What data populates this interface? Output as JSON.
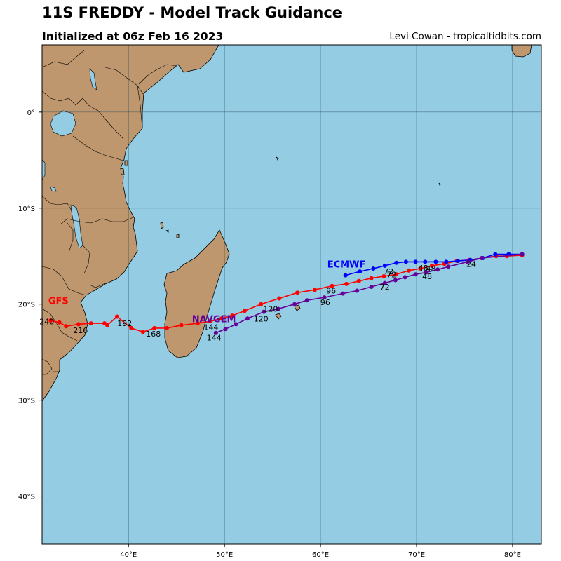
{
  "header": {
    "title": "11S FREDDY - Model Track Guidance",
    "subtitle": "Initialized at 06z Feb 16 2023",
    "credit": "Levi Cowan - tropicaltidbits.com"
  },
  "colors": {
    "ocean": "#94cde3",
    "land": "#bf976e",
    "lake": "#94cde3",
    "grid": "#2b4f5c",
    "GFS": "#ff0000",
    "ECMWF": "#0000ff",
    "NAVGEM": "#660099"
  },
  "chart_data": {
    "type": "scatter",
    "title": "11S FREDDY - Model Track Guidance",
    "subtitle": "Initialized at 06z Feb 16 2023",
    "x_axis": {
      "unit": "degrees longitude east",
      "range": [
        31,
        83
      ],
      "ticks": [
        40,
        50,
        60,
        70,
        80
      ],
      "tick_labels": [
        "40°E",
        "50°E",
        "60°E",
        "70°E",
        "80°E"
      ]
    },
    "y_axis": {
      "unit": "degrees latitude (negative = south)",
      "range": [
        -45,
        7
      ],
      "ticks": [
        0,
        -10,
        -20,
        -30,
        -40
      ],
      "tick_labels": [
        "0°",
        "10°S",
        "20°S",
        "30°S",
        "40°S"
      ]
    },
    "grid": true,
    "series": [
      {
        "name": "GFS",
        "color": "#ff0000",
        "points": [
          [
            81.0,
            -14.9
          ],
          [
            79.4,
            -15.0
          ],
          [
            78.3,
            -15.0
          ],
          [
            76.8,
            -15.2
          ],
          [
            75.5,
            -15.4
          ],
          [
            74.2,
            -15.5
          ],
          [
            72.9,
            -15.8
          ],
          [
            71.6,
            -16.0
          ],
          [
            70.4,
            -16.3
          ],
          [
            69.2,
            -16.5
          ],
          [
            67.9,
            -16.9
          ],
          [
            66.6,
            -17.1
          ],
          [
            65.3,
            -17.3
          ],
          [
            64.0,
            -17.6
          ],
          [
            62.7,
            -17.9
          ],
          [
            61.2,
            -18.1
          ],
          [
            59.4,
            -18.5
          ],
          [
            57.6,
            -18.8
          ],
          [
            55.7,
            -19.4
          ],
          [
            53.8,
            -20.0
          ],
          [
            52.1,
            -20.7
          ],
          [
            50.8,
            -21.2
          ],
          [
            49.7,
            -21.5
          ],
          [
            48.5,
            -21.8
          ],
          [
            47.2,
            -22.0
          ],
          [
            45.5,
            -22.2
          ],
          [
            44.0,
            -22.5
          ],
          [
            42.7,
            -22.5
          ],
          [
            41.5,
            -22.9
          ],
          [
            40.3,
            -22.5
          ],
          [
            38.8,
            -21.3
          ],
          [
            37.8,
            -22.2
          ],
          [
            37.5,
            -22.0
          ],
          [
            36.1,
            -22.0
          ],
          [
            34.8,
            -22.1
          ],
          [
            33.5,
            -22.3
          ],
          [
            32.8,
            -21.9
          ],
          [
            31.9,
            -21.7
          ]
        ],
        "hour_labels": [
          {
            "text": "24",
            "lon": 75.7,
            "lat": -16.1
          },
          {
            "text": "48",
            "lon": 71.5,
            "lat": -16.6
          },
          {
            "text": "72",
            "lon": 67.4,
            "lat": -17.2
          },
          {
            "text": "96",
            "lon": 61.1,
            "lat": -18.9
          },
          {
            "text": "120",
            "lon": 54.8,
            "lat": -20.8
          },
          {
            "text": "144",
            "lon": 48.6,
            "lat": -22.7
          },
          {
            "text": "168",
            "lon": 42.6,
            "lat": -23.4
          },
          {
            "text": "192",
            "lon": 39.6,
            "lat": -22.3
          },
          {
            "text": "216",
            "lon": 35.0,
            "lat": -23.0
          },
          {
            "text": "240",
            "lon": 31.5,
            "lat": -22.1
          }
        ]
      },
      {
        "name": "ECMWF",
        "color": "#0000ff",
        "points": [
          [
            81.0,
            -14.8
          ],
          [
            79.6,
            -14.8
          ],
          [
            78.2,
            -14.8
          ],
          [
            76.9,
            -15.2
          ],
          [
            75.6,
            -15.4
          ],
          [
            74.3,
            -15.5
          ],
          [
            73.1,
            -15.6
          ],
          [
            72.0,
            -15.6
          ],
          [
            70.9,
            -15.6
          ],
          [
            69.9,
            -15.6
          ],
          [
            68.9,
            -15.6
          ],
          [
            67.9,
            -15.7
          ],
          [
            66.7,
            -16.0
          ],
          [
            65.5,
            -16.3
          ],
          [
            64.1,
            -16.6
          ],
          [
            62.6,
            -17.0
          ]
        ],
        "hour_labels": [
          {
            "text": "24",
            "lon": 75.7,
            "lat": -16.1
          },
          {
            "text": "48",
            "lon": 70.7,
            "lat": -16.5
          },
          {
            "text": "72",
            "lon": 67.1,
            "lat": -16.9
          }
        ]
      },
      {
        "name": "NAVGEM",
        "color": "#660099",
        "points": [
          [
            81.0,
            -14.8
          ],
          [
            76.8,
            -15.2
          ],
          [
            75.3,
            -15.6
          ],
          [
            73.3,
            -16.1
          ],
          [
            72.2,
            -16.4
          ],
          [
            71.0,
            -16.7
          ],
          [
            69.9,
            -16.9
          ],
          [
            68.8,
            -17.2
          ],
          [
            67.8,
            -17.5
          ],
          [
            66.7,
            -17.8
          ],
          [
            65.3,
            -18.2
          ],
          [
            63.8,
            -18.6
          ],
          [
            62.3,
            -18.9
          ],
          [
            60.4,
            -19.3
          ],
          [
            58.6,
            -19.6
          ],
          [
            57.3,
            -20.0
          ],
          [
            55.6,
            -20.5
          ],
          [
            54.1,
            -20.8
          ],
          [
            52.4,
            -21.5
          ],
          [
            51.2,
            -22.1
          ],
          [
            50.1,
            -22.6
          ],
          [
            49.1,
            -23.0
          ]
        ],
        "hour_labels": [
          {
            "text": "48",
            "lon": 71.1,
            "lat": -17.4
          },
          {
            "text": "72",
            "lon": 66.7,
            "lat": -18.5
          },
          {
            "text": "96",
            "lon": 60.5,
            "lat": -20.1
          },
          {
            "text": "120",
            "lon": 53.8,
            "lat": -21.8
          },
          {
            "text": "144",
            "lon": 48.9,
            "lat": -23.8
          }
        ]
      }
    ],
    "legend_labels": [
      {
        "text": "ECMWF",
        "color": "#0000ff",
        "lon": 62.7,
        "lat": -16.2
      },
      {
        "text": "GFS",
        "color": "#ff0000",
        "lon": 32.7,
        "lat": -20.0
      },
      {
        "text": "NAVGEM",
        "color": "#660099",
        "lon": 48.9,
        "lat": -21.9
      }
    ]
  }
}
